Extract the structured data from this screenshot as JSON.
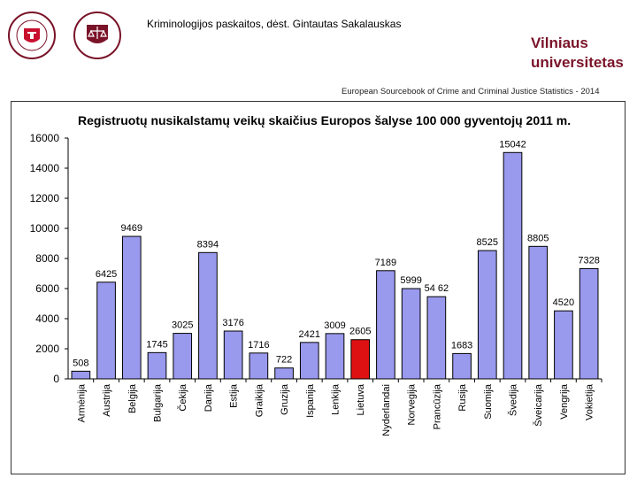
{
  "header": {
    "lecturer_note": "Kriminologijos paskaitos, dėst. Gintautas Sakalauskas",
    "university_line1": "Vilniaus",
    "university_line2": "universitetas",
    "source_note": "European Sourcebook of Crime and Criminal Justice Statistics - 2014"
  },
  "logos": {
    "left_seal_text": "VILNIAUS UNIVERSITETAS",
    "right_seal_text": "TEISĖS FAKULTETAS"
  },
  "colors": {
    "bar": "#9999ee",
    "bar_highlight": "#dd1111",
    "university": "#7a1328"
  },
  "chart_data": {
    "type": "bar",
    "title": "Registruotų nusikalstamų veikų skaičius Europos šalyse 100 000 gyventojų 2011 m.",
    "xlabel": "",
    "ylabel": "",
    "ylim": [
      0,
      16000
    ],
    "yticks": [
      0,
      2000,
      4000,
      6000,
      8000,
      10000,
      12000,
      14000,
      16000
    ],
    "categories": [
      "Armėnija",
      "Austrija",
      "Belgija",
      "Bulgarija",
      "Čekija",
      "Danija",
      "Estija",
      "Graikija",
      "Gruzija",
      "Ispanija",
      "Lenkija",
      "Lietuva",
      "Nyderlandai",
      "Norvegija",
      "Prancūzija",
      "Rusija",
      "Suomija",
      "Švedija",
      "Šveicarija",
      "Vengrija",
      "Vokietija"
    ],
    "values": [
      508,
      6425,
      9469,
      1745,
      3025,
      8394,
      3176,
      1716,
      722,
      2421,
      3009,
      2605,
      7189,
      5999,
      5462,
      1683,
      8525,
      15042,
      8805,
      4520,
      7328
    ],
    "value_labels": [
      "508",
      "6425",
      "9469",
      "1745",
      "3025",
      "8394",
      "3176",
      "1716",
      "722",
      "2421",
      "3009",
      "2605",
      "7189",
      "5999",
      "54 62",
      "1683",
      "8525",
      "15042",
      "8805",
      "4520",
      "7328"
    ],
    "highlight": "Lietuva",
    "grid": false,
    "legend": "none"
  }
}
